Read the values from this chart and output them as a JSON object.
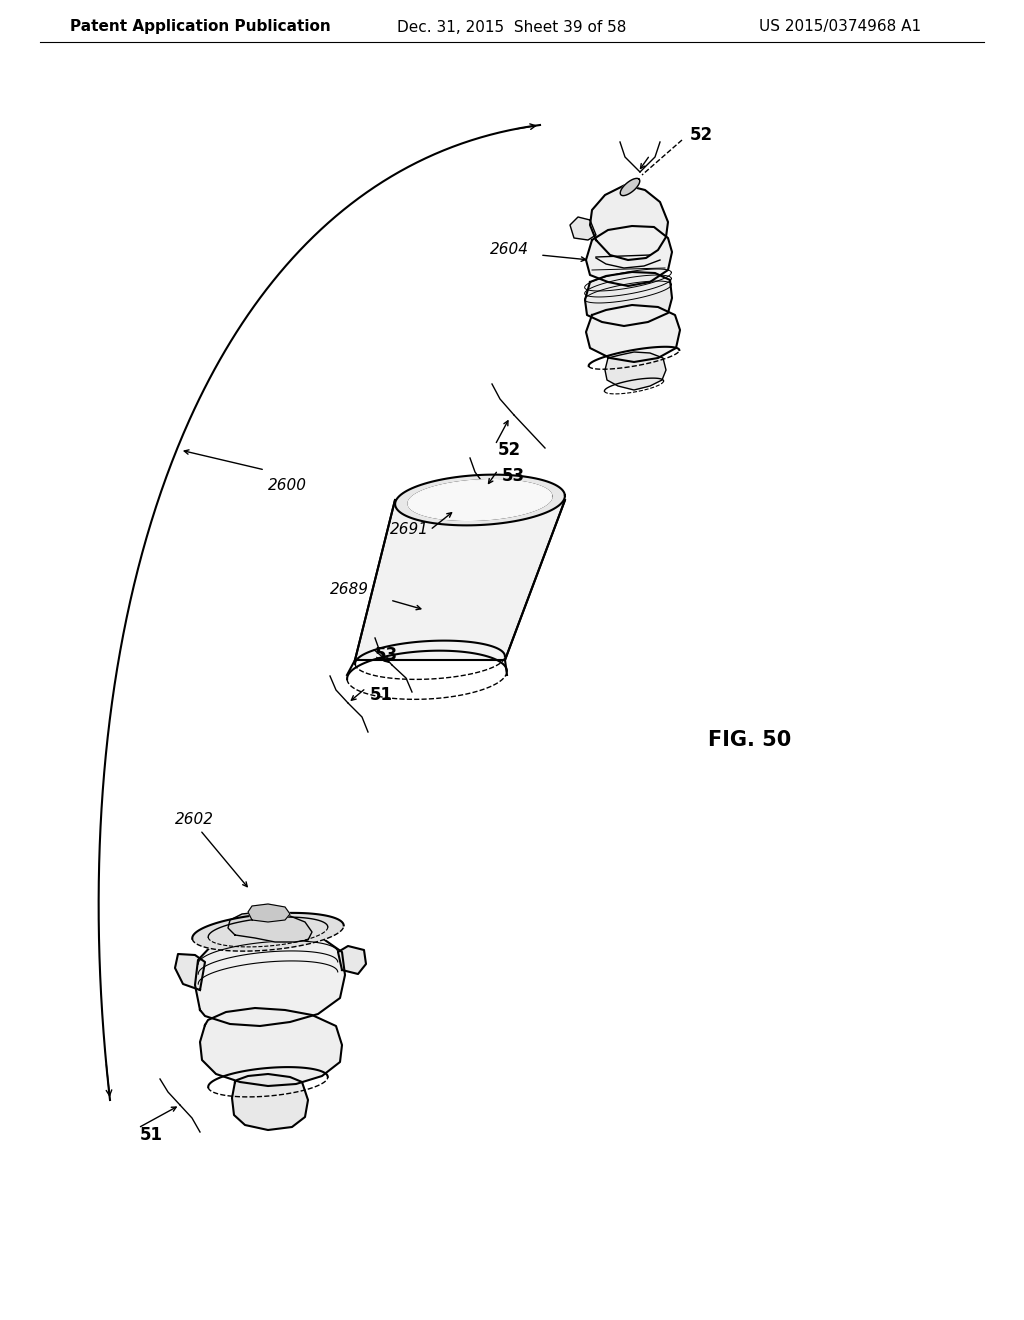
{
  "background_color": "#ffffff",
  "header_left": "Patent Application Publication",
  "header_center": "Dec. 31, 2015  Sheet 39 of 58",
  "header_right": "US 2015/0374968 A1",
  "figure_label": "FIG. 50",
  "line_color": "#000000",
  "text_color": "#000000",
  "font_size_header": 11,
  "font_size_label": 11
}
